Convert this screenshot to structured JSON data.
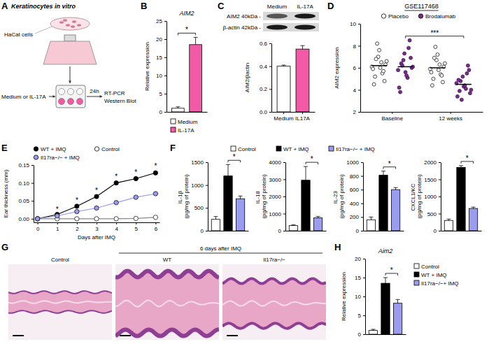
{
  "panel_letters": [
    "A",
    "B",
    "C",
    "D",
    "E",
    "F",
    "G",
    "H"
  ],
  "panel_A": {
    "title": "Keratinocytes in vitro",
    "cells": "HaCat cells",
    "treatment": "Medium or IL-17A",
    "time": "24h",
    "readouts": [
      "RT-PCR",
      "Western Blot"
    ]
  },
  "panel_C_blot": {
    "columns": [
      "Medium",
      "IL-17A"
    ],
    "rows": [
      "AIM2 40kDa -",
      "β-actin 42kDa -"
    ]
  },
  "panel_G": {
    "group": "6 days after IMQ",
    "images": [
      "Control",
      "WT",
      "Il17ra−/−"
    ]
  },
  "chart_data": [
    {
      "type": "bar",
      "title": "AIM2",
      "ylabel": "Relative expression",
      "ylim": [
        0,
        25
      ],
      "yticks": [
        0,
        5,
        10,
        15,
        20,
        25
      ],
      "tick_labels": "y",
      "legend": "bottom",
      "series": [
        {
          "name": "Medium",
          "color": "#ffffff",
          "values": [
            1.0
          ],
          "errors": [
            0.4
          ]
        },
        {
          "name": "IL-17A",
          "color": "#f25aa8",
          "values": [
            18.5
          ],
          "errors": [
            2.0
          ]
        }
      ],
      "annotations": [
        "*"
      ]
    },
    {
      "type": "bar",
      "ylabel": "AIM2/βactin",
      "categories": [
        "Medium",
        "IL17A"
      ],
      "values": [
        0.4,
        0.55
      ],
      "errors": [
        0.01,
        0.03
      ],
      "colors": [
        "#ffffff",
        "#f25aa8"
      ],
      "ylim": [
        0,
        0.6
      ],
      "yticks": [
        {
          "value": 0,
          "label": "0.0"
        },
        {
          "value": 0.2,
          "label": "0.2"
        },
        {
          "value": 0.4,
          "label": "0.4"
        },
        {
          "value": 0.6,
          "label": "0.6"
        }
      ]
    },
    {
      "type": "strip",
      "title": "GSE117468",
      "ylabel": "AIM2 expression",
      "categories": [
        "Baseline",
        "12 weeks"
      ],
      "ylim": [
        2,
        10
      ],
      "yticks": [
        2,
        4,
        6,
        8,
        10
      ],
      "legend": "top",
      "series": [
        {
          "name": "Placebo",
          "color": "#ffffff",
          "marker": "circle",
          "values": [
            [
              6.1,
              5.2,
              7.0,
              6.5,
              4.8,
              5.9,
              6.8,
              7.6,
              5.5,
              6.3,
              4.5,
              8.2,
              6.0,
              5.7,
              6.6
            ],
            [
              5.9,
              5.0,
              6.7,
              6.3,
              4.7,
              5.6,
              6.9,
              7.2,
              5.4,
              6.1,
              4.4,
              7.9,
              5.8,
              5.3,
              6.4
            ]
          ],
          "means": [
            6.2,
            6.0
          ]
        },
        {
          "name": "Brodalumab",
          "color": "#7b2d8e",
          "marker": "circle",
          "values": [
            [
              5.8,
              6.4,
              7.3,
              5.1,
              6.9,
              4.2,
              6.2,
              5.6,
              7.8,
              6.0,
              3.8,
              6.7,
              5.3,
              8.5,
              6.1
            ],
            [
              4.6,
              3.9,
              5.2,
              4.1,
              5.8,
              3.4,
              4.8,
              4.3,
              5.5,
              3.7,
              4.9,
              3.1,
              4.4,
              6.2,
              4.0
            ]
          ],
          "means": [
            6.1,
            4.5
          ]
        }
      ],
      "annotations": [
        "***"
      ]
    },
    {
      "type": "line",
      "ylabel": "Ear thickness (mm)",
      "xlabel": "Days after IMQ",
      "x": [
        0,
        1,
        2,
        3,
        4,
        5,
        6
      ],
      "xlim": [
        -0.2,
        6.2
      ],
      "xticks": [
        0,
        1,
        2,
        3,
        4,
        5,
        6
      ],
      "ylim": [
        -0.01,
        0.15
      ],
      "yticks": [
        {
          "value": 0,
          "label": "0.00"
        },
        {
          "value": 0.05,
          "label": "0.05"
        },
        {
          "value": 0.1,
          "label": "0.10"
        },
        {
          "value": 0.15,
          "label": "0.15"
        }
      ],
      "legend": "top",
      "series": [
        {
          "name": "Control",
          "color": "#ffffff",
          "marker": "circle",
          "values": [
            0,
            0,
            0,
            0,
            0,
            0.001,
            0.004
          ],
          "errors": [
            0,
            0.001,
            0.001,
            0.001,
            0.001,
            0.001,
            0.002
          ]
        },
        {
          "name": "WT + IMQ",
          "color": "#000000",
          "marker": "circle",
          "values": [
            0,
            0.012,
            0.035,
            0.062,
            0.1,
            0.112,
            0.128
          ],
          "errors": [
            0,
            0.002,
            0.003,
            0.004,
            0.005,
            0.005,
            0.006
          ]
        },
        {
          "name": "Il17ra−/− + IMQ",
          "color": "#9a9cf0",
          "marker": "circle",
          "values": [
            0,
            0.008,
            0.02,
            0.03,
            0.045,
            0.06,
            0.07
          ],
          "errors": [
            0,
            0.002,
            0.002,
            0.003,
            0.003,
            0.003,
            0.003
          ]
        }
      ],
      "annotations": [
        {
          "x": 1,
          "text": "*"
        },
        {
          "x": 2,
          "text": "*"
        },
        {
          "x": 3,
          "text": "*"
        },
        {
          "x": 4,
          "text": "*"
        },
        {
          "x": 5,
          "text": "*"
        },
        {
          "x": 6,
          "text": "*"
        }
      ]
    },
    {
      "type": "bar",
      "legend": "top",
      "tick_labels": "y",
      "series": [
        {
          "name": "Control",
          "color": "#ffffff",
          "values": [
            250,
            300,
            160,
            300
          ],
          "errors": [
            60,
            40,
            40,
            40
          ]
        },
        {
          "name": "WT + IMQ",
          "color": "#000000",
          "values": [
            1200,
            2950,
            810,
            1850
          ],
          "errors": [
            250,
            800,
            60,
            50
          ]
        },
        {
          "name": "Il17ra−/− + IMQ",
          "color": "#9a9cf0",
          "values": [
            700,
            750,
            600,
            650
          ],
          "errors": [
            60,
            80,
            30,
            40
          ]
        }
      ],
      "panels": [
        {
          "ylabel": "IL-1β (pg/mg of protein)",
          "ylim": [
            0,
            1500
          ],
          "yticks": [
            0,
            500,
            1000,
            1500
          ],
          "annotations": [
            "*"
          ]
        },
        {
          "ylabel": "IL-18 (pg/mg of protein)",
          "ylim": [
            0,
            4000
          ],
          "yticks": [
            0,
            1000,
            2000,
            3000,
            4000
          ],
          "annotations": [
            "*"
          ]
        },
        {
          "ylabel": "IL-23 (pg/mg of protein)",
          "ylim": [
            0,
            1000
          ],
          "yticks": [
            0,
            200,
            400,
            600,
            800,
            1000
          ],
          "annotations": [
            "*"
          ]
        },
        {
          "ylabel": "CXCL1/KC (pg/mg of protein)",
          "ylim": [
            0,
            2000
          ],
          "yticks": [
            0,
            500,
            1000,
            1500,
            2000
          ],
          "annotations": [
            "*"
          ]
        }
      ]
    },
    {
      "type": "bar",
      "title": "Aim2",
      "ylabel": "Relative expression",
      "ylim": [
        0,
        20
      ],
      "yticks": [
        0,
        5,
        10,
        15,
        20
      ],
      "tick_labels": "y",
      "legend": "right",
      "series": [
        {
          "name": "Control",
          "color": "#ffffff",
          "values": [
            1.0
          ],
          "errors": [
            0.3
          ]
        },
        {
          "name": "WT + IMQ",
          "color": "#000000",
          "values": [
            13.5
          ],
          "errors": [
            1.5
          ]
        },
        {
          "name": "Il17ra−/−+ IMQ",
          "color": "#9a9cf0",
          "values": [
            8.2
          ],
          "errors": [
            1.0
          ]
        }
      ],
      "annotations": [
        "*"
      ]
    }
  ]
}
